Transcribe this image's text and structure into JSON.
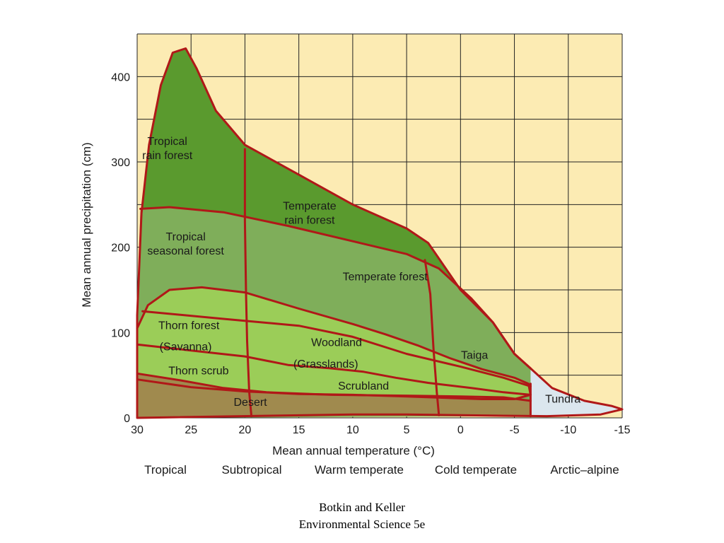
{
  "colors": {
    "background": "#fcebb3",
    "grid": "#222222",
    "boundary": "#b01818",
    "tropical_rain_forest": "#5a9a2e",
    "temperate_rain_forest": "#5a9a2e",
    "seasonal_forest": "#7fae5a",
    "woodland": "#9bcd58",
    "desert": "#a08a4e",
    "tundra": "#dbe6ee"
  },
  "chart_data": {
    "type": "area",
    "title": "",
    "xlabel": "Mean annual temperature (°C)",
    "ylabel": "Mean annual precipitation (cm)",
    "x_reversed": true,
    "xlim": [
      30,
      -15
    ],
    "ylim": [
      0,
      450
    ],
    "x_ticks": [
      30,
      25,
      20,
      15,
      10,
      5,
      0,
      -5,
      -10,
      -15
    ],
    "x_tick_labels": [
      "30",
      "25",
      "20",
      "15",
      "10",
      "5",
      "0",
      "-5",
      "-10",
      "-15"
    ],
    "y_ticks": [
      0,
      100,
      200,
      300,
      400
    ],
    "y_tick_labels": [
      "0",
      "100",
      "200",
      "300",
      "400"
    ],
    "grid": true,
    "climate_zones": [
      "Tropical",
      "Subtropical",
      "Warm temperate",
      "Cold temperate",
      "Arctic–alpine"
    ],
    "biomes": [
      {
        "name": "Tropical rain forest",
        "lines": [
          "Tropical",
          "rain forest"
        ],
        "label_at": [
          27.2,
          320
        ],
        "fill": "tropical_rain_forest"
      },
      {
        "name": "Temperate rain forest",
        "lines": [
          "Temperate",
          "rain forest"
        ],
        "label_at": [
          14,
          244
        ],
        "fill": "temperate_rain_forest"
      },
      {
        "name": "Tropical seasonal forest",
        "lines": [
          "Tropical",
          "seasonal forest"
        ],
        "label_at": [
          25.5,
          208
        ],
        "fill": "seasonal_forest"
      },
      {
        "name": "Temperate forest",
        "lines": [
          "Temperate forest"
        ],
        "label_at": [
          7,
          161
        ],
        "fill": "seasonal_forest"
      },
      {
        "name": "Thorn forest",
        "lines": [
          "Thorn forest"
        ],
        "label_at": [
          25.2,
          104
        ],
        "fill": "woodland"
      },
      {
        "name": "(Savanna)",
        "lines": [
          "(Savanna)"
        ],
        "label_at": [
          25.5,
          79
        ],
        "fill": "woodland"
      },
      {
        "name": "Woodland",
        "lines": [
          "Woodland"
        ],
        "label_at": [
          11.5,
          84
        ],
        "fill": "woodland"
      },
      {
        "name": "(Grasslands)",
        "lines": [
          "(Grasslands)"
        ],
        "label_at": [
          12.5,
          59
        ],
        "fill": "woodland"
      },
      {
        "name": "Thorn scrub",
        "lines": [
          "Thorn scrub"
        ],
        "label_at": [
          24.3,
          51
        ],
        "fill": "woodland"
      },
      {
        "name": "Scrubland",
        "lines": [
          "Scrubland"
        ],
        "label_at": [
          9,
          33
        ],
        "fill": "woodland"
      },
      {
        "name": "Taiga",
        "lines": [
          "Taiga"
        ],
        "label_at": [
          -1.3,
          69
        ],
        "fill": "seasonal_forest"
      },
      {
        "name": "Desert",
        "lines": [
          "Desert"
        ],
        "label_at": [
          19.5,
          14
        ],
        "fill": "desert"
      },
      {
        "name": "Tundra",
        "lines": [
          "Tundra"
        ],
        "label_at": [
          -9.5,
          18
        ],
        "fill": "tundra"
      }
    ],
    "outline": [
      [
        30,
        0
      ],
      [
        30,
        120
      ],
      [
        29.6,
        240
      ],
      [
        28.9,
        320
      ],
      [
        27.8,
        390
      ],
      [
        26.7,
        428
      ],
      [
        25.5,
        433
      ],
      [
        24.5,
        410
      ],
      [
        22.7,
        360
      ],
      [
        20,
        320
      ],
      [
        15,
        285
      ],
      [
        10,
        250
      ],
      [
        5,
        222
      ],
      [
        3,
        205
      ],
      [
        0,
        150
      ],
      [
        -3,
        112
      ],
      [
        -5,
        75
      ],
      [
        -6.5,
        58
      ],
      [
        -8.5,
        35
      ],
      [
        -11.5,
        20
      ],
      [
        -14,
        14
      ],
      [
        -15,
        10
      ],
      [
        -13,
        4
      ],
      [
        -8,
        2
      ],
      [
        -4,
        2.5
      ],
      [
        5,
        4
      ],
      [
        10,
        4
      ],
      [
        30,
        0
      ]
    ],
    "boundaries": [
      {
        "name": "rain forest / seasonal forest",
        "points": [
          [
            29.7,
            245
          ],
          [
            27,
            247
          ],
          [
            22,
            241
          ],
          [
            16,
            225
          ],
          [
            10,
            207
          ],
          [
            5,
            192
          ],
          [
            2,
            175
          ],
          [
            -1,
            140
          ],
          [
            -3,
            112
          ],
          [
            -5,
            75
          ],
          [
            -6.5,
            58
          ]
        ]
      },
      {
        "name": "woodland upper",
        "points": [
          [
            30,
            105
          ],
          [
            29,
            132
          ],
          [
            27,
            150
          ],
          [
            24,
            153
          ],
          [
            20,
            147
          ],
          [
            15,
            128
          ],
          [
            10,
            110
          ],
          [
            7,
            98
          ],
          [
            4,
            85
          ],
          [
            1,
            70
          ],
          [
            -2,
            57
          ],
          [
            -5,
            47
          ],
          [
            -6.3,
            40
          ],
          [
            -6.5,
            27
          ],
          [
            -5,
            22
          ],
          [
            -2,
            22
          ],
          [
            5,
            25
          ],
          [
            10,
            27
          ],
          [
            15,
            28
          ],
          [
            20,
            31
          ],
          [
            25,
            36
          ],
          [
            30,
            45
          ]
        ]
      },
      {
        "name": "thorn forest / woodland",
        "points": [
          [
            29.5,
            125
          ],
          [
            22,
            116
          ],
          [
            15,
            108
          ],
          [
            10,
            95
          ],
          [
            5,
            75
          ],
          [
            0,
            60
          ],
          [
            -4,
            47
          ],
          [
            -6.5,
            37
          ]
        ]
      },
      {
        "name": "savanna line",
        "points": [
          [
            30,
            86
          ],
          [
            25,
            79
          ],
          [
            20,
            72
          ],
          [
            16,
            62
          ],
          [
            12,
            58
          ],
          [
            9,
            54
          ],
          [
            6,
            47
          ],
          [
            3,
            41
          ],
          [
            -1,
            35
          ],
          [
            -4,
            30
          ],
          [
            -6.5,
            27
          ]
        ]
      },
      {
        "name": "desert upper",
        "points": [
          [
            30,
            52
          ],
          [
            26,
            44
          ],
          [
            22,
            35
          ],
          [
            18,
            30
          ],
          [
            12,
            27
          ],
          [
            5,
            26
          ],
          [
            0,
            25
          ],
          [
            -4,
            24
          ],
          [
            -6.5,
            20
          ]
        ]
      },
      {
        "name": "20 C divider",
        "points": [
          [
            20,
            315
          ],
          [
            20,
            230
          ],
          [
            19.9,
            145
          ],
          [
            19.8,
            90
          ],
          [
            19.6,
            30
          ],
          [
            19.4,
            2
          ]
        ]
      },
      {
        "name": "cold divider",
        "points": [
          [
            3.3,
            185
          ],
          [
            2.8,
            145
          ],
          [
            2.5,
            80
          ],
          [
            2.2,
            30
          ],
          [
            2,
            3
          ]
        ]
      },
      {
        "name": "tundra divider",
        "points": [
          [
            -6.5,
            40
          ],
          [
            -6.5,
            2
          ]
        ]
      }
    ]
  },
  "caption": {
    "line1": "Botkin and Keller",
    "line2": "Environmental Science 5e"
  }
}
